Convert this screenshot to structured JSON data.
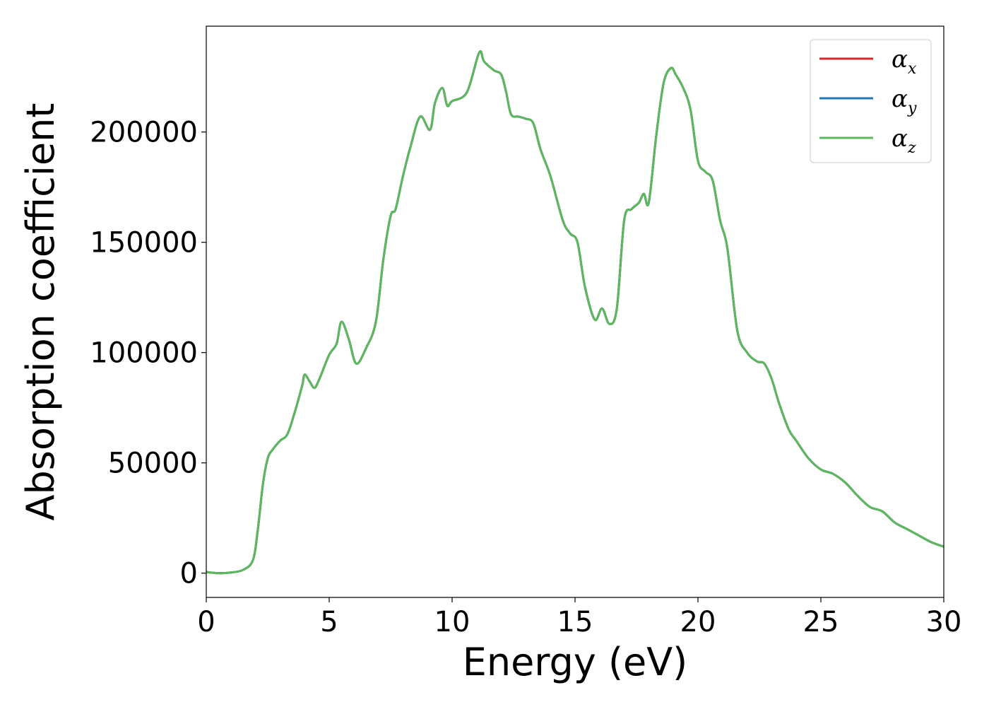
{
  "chart_data": {
    "type": "line",
    "xlabel": "Energy (eV)",
    "ylabel": "Absorption coefficient",
    "xlim": [
      0,
      30
    ],
    "ylim": [
      -11000,
      248000
    ],
    "xticks": [
      0,
      5,
      10,
      15,
      20,
      25,
      30
    ],
    "yticks": [
      0,
      50000,
      100000,
      150000,
      200000
    ],
    "xtick_labels": [
      "0",
      "5",
      "10",
      "15",
      "20",
      "25",
      "30"
    ],
    "ytick_labels": [
      "0",
      "50000",
      "100000",
      "150000",
      "200000"
    ],
    "grid": false,
    "legend_position": "top-right",
    "series": [
      {
        "name": "α_x",
        "symbol": "α",
        "subscript": "x",
        "color": "#d62728",
        "x": [
          0,
          0.5,
          1.0,
          1.5,
          1.9,
          2.1,
          2.3,
          2.5,
          2.7,
          3.0,
          3.3,
          3.6,
          3.9,
          4.0,
          4.2,
          4.4,
          4.6,
          5.0,
          5.3,
          5.5,
          5.8,
          6.1,
          6.5,
          6.9,
          7.2,
          7.5,
          7.7,
          8.0,
          8.3,
          8.7,
          9.1,
          9.3,
          9.6,
          9.8,
          10.0,
          10.6,
          11.1,
          11.3,
          11.7,
          12.0,
          12.2,
          12.4,
          12.7,
          13.0,
          13.3,
          13.6,
          14.0,
          14.5,
          14.8,
          15.1,
          15.4,
          15.8,
          16.1,
          16.4,
          16.7,
          17.0,
          17.3,
          17.6,
          17.8,
          18.0,
          18.3,
          18.6,
          18.9,
          19.1,
          19.4,
          19.7,
          20.0,
          20.3,
          20.6,
          20.9,
          21.2,
          21.6,
          22.0,
          22.4,
          22.7,
          23.0,
          23.3,
          23.7,
          24.0,
          24.5,
          25.0,
          25.5,
          26.0,
          26.5,
          27.0,
          27.5,
          28.0,
          28.5,
          29.0,
          29.5,
          30.0
        ],
        "y": [
          500,
          0,
          300,
          1500,
          6000,
          20000,
          40000,
          52000,
          56000,
          60000,
          63000,
          73000,
          85000,
          90000,
          87000,
          84000,
          88000,
          99000,
          104000,
          114000,
          106000,
          95000,
          102000,
          114000,
          142000,
          162000,
          165000,
          180000,
          193000,
          207000,
          201000,
          213000,
          220000,
          212000,
          214000,
          218000,
          236000,
          232000,
          228000,
          226000,
          218000,
          208000,
          207000,
          206000,
          204000,
          192000,
          180000,
          160000,
          154000,
          150000,
          130000,
          115000,
          120000,
          113000,
          120000,
          160000,
          165000,
          168000,
          172000,
          168000,
          198000,
          222000,
          229000,
          226000,
          220000,
          210000,
          187000,
          182000,
          178000,
          160000,
          147000,
          110000,
          100000,
          96000,
          95000,
          88000,
          77000,
          65000,
          60000,
          52000,
          47000,
          45000,
          41000,
          35000,
          30000,
          28000,
          23000,
          20000,
          17000,
          14000,
          12000
        ]
      },
      {
        "name": "α_y",
        "symbol": "α",
        "subscript": "y",
        "color": "#1f77b4",
        "x": [
          0,
          0.5,
          1.0,
          1.5,
          1.9,
          2.1,
          2.3,
          2.5,
          2.7,
          3.0,
          3.3,
          3.6,
          3.9,
          4.0,
          4.2,
          4.4,
          4.6,
          5.0,
          5.3,
          5.5,
          5.8,
          6.1,
          6.5,
          6.9,
          7.2,
          7.5,
          7.7,
          8.0,
          8.3,
          8.7,
          9.1,
          9.3,
          9.6,
          9.8,
          10.0,
          10.6,
          11.1,
          11.3,
          11.7,
          12.0,
          12.2,
          12.4,
          12.7,
          13.0,
          13.3,
          13.6,
          14.0,
          14.5,
          14.8,
          15.1,
          15.4,
          15.8,
          16.1,
          16.4,
          16.7,
          17.0,
          17.3,
          17.6,
          17.8,
          18.0,
          18.3,
          18.6,
          18.9,
          19.1,
          19.4,
          19.7,
          20.0,
          20.3,
          20.6,
          20.9,
          21.2,
          21.6,
          22.0,
          22.4,
          22.7,
          23.0,
          23.3,
          23.7,
          24.0,
          24.5,
          25.0,
          25.5,
          26.0,
          26.5,
          27.0,
          27.5,
          28.0,
          28.5,
          29.0,
          29.5,
          30.0
        ],
        "y": [
          500,
          0,
          300,
          1500,
          6000,
          20000,
          40000,
          52000,
          56000,
          60000,
          63000,
          73000,
          85000,
          90000,
          87000,
          84000,
          88000,
          99000,
          104000,
          114000,
          106000,
          95000,
          102000,
          114000,
          142000,
          162000,
          165000,
          180000,
          193000,
          207000,
          201000,
          213000,
          220000,
          212000,
          214000,
          218000,
          236000,
          232000,
          228000,
          226000,
          218000,
          208000,
          207000,
          206000,
          204000,
          192000,
          180000,
          160000,
          154000,
          150000,
          130000,
          115000,
          120000,
          113000,
          120000,
          160000,
          165000,
          168000,
          172000,
          168000,
          198000,
          222000,
          229000,
          226000,
          220000,
          210000,
          187000,
          182000,
          178000,
          160000,
          147000,
          110000,
          100000,
          96000,
          95000,
          88000,
          77000,
          65000,
          60000,
          52000,
          47000,
          45000,
          41000,
          35000,
          30000,
          28000,
          23000,
          20000,
          17000,
          14000,
          12000
        ]
      },
      {
        "name": "α_z",
        "symbol": "α",
        "subscript": "z",
        "color": "#5cb85c",
        "x": [
          0,
          0.5,
          1.0,
          1.5,
          1.9,
          2.1,
          2.3,
          2.5,
          2.7,
          3.0,
          3.3,
          3.6,
          3.9,
          4.0,
          4.2,
          4.4,
          4.6,
          5.0,
          5.3,
          5.5,
          5.8,
          6.1,
          6.5,
          6.9,
          7.2,
          7.5,
          7.7,
          8.0,
          8.3,
          8.7,
          9.1,
          9.3,
          9.6,
          9.8,
          10.0,
          10.6,
          11.1,
          11.3,
          11.7,
          12.0,
          12.2,
          12.4,
          12.7,
          13.0,
          13.3,
          13.6,
          14.0,
          14.5,
          14.8,
          15.1,
          15.4,
          15.8,
          16.1,
          16.4,
          16.7,
          17.0,
          17.3,
          17.6,
          17.8,
          18.0,
          18.3,
          18.6,
          18.9,
          19.1,
          19.4,
          19.7,
          20.0,
          20.3,
          20.6,
          20.9,
          21.2,
          21.6,
          22.0,
          22.4,
          22.7,
          23.0,
          23.3,
          23.7,
          24.0,
          24.5,
          25.0,
          25.5,
          26.0,
          26.5,
          27.0,
          27.5,
          28.0,
          28.5,
          29.0,
          29.5,
          30.0
        ],
        "y": [
          500,
          0,
          300,
          1500,
          6000,
          20000,
          40000,
          52000,
          56000,
          60000,
          63000,
          73000,
          85000,
          90000,
          87000,
          84000,
          88000,
          99000,
          104000,
          114000,
          106000,
          95000,
          102000,
          114000,
          142000,
          162000,
          165000,
          180000,
          193000,
          207000,
          201000,
          213000,
          220000,
          212000,
          214000,
          218000,
          236000,
          232000,
          228000,
          226000,
          218000,
          208000,
          207000,
          206000,
          204000,
          192000,
          180000,
          160000,
          154000,
          150000,
          130000,
          115000,
          120000,
          113000,
          120000,
          160000,
          165000,
          168000,
          172000,
          168000,
          198000,
          222000,
          229000,
          226000,
          220000,
          210000,
          187000,
          182000,
          178000,
          160000,
          147000,
          110000,
          100000,
          96000,
          95000,
          88000,
          77000,
          65000,
          60000,
          52000,
          47000,
          45000,
          41000,
          35000,
          30000,
          28000,
          23000,
          20000,
          17000,
          14000,
          12000
        ]
      }
    ]
  }
}
